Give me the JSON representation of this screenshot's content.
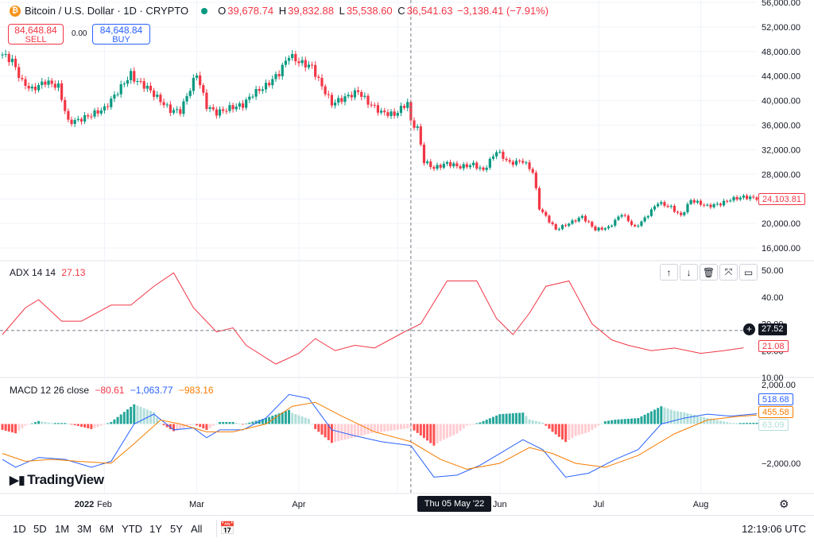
{
  "header": {
    "symbol": "Bitcoin / U.S. Dollar · 1D · CRYPTO",
    "coin_glyph": "₿",
    "ohlc": {
      "o_label": "O",
      "o": "39,678.74",
      "h_label": "H",
      "h": "39,832.88",
      "l_label": "L",
      "l": "35,538.60",
      "c_label": "C",
      "c": "36,541.63",
      "chg": "−3,138.41 (−7.91%)"
    }
  },
  "trade": {
    "sell_price": "84,648.84",
    "sell_label": "SELL",
    "spread": "0.00",
    "buy_price": "84,648.84",
    "buy_label": "BUY"
  },
  "price_pane": {
    "axis_ticks": [
      "56,000.00",
      "52,000.00",
      "48,000.00",
      "44,000.00",
      "40,000.00",
      "36,000.00",
      "32,000.00",
      "28,000.00",
      "24,000.00",
      "20,000.00",
      "16,000.00"
    ],
    "last_price": "24,103.81"
  },
  "adx_pane": {
    "legend": "ADX 14 14",
    "value": "27.13",
    "axis_ticks": [
      "50.00",
      "40.00",
      "30.00",
      "20.00",
      "10.00"
    ],
    "crosshair_value": "27.52",
    "last_value": "21.08"
  },
  "macd_pane": {
    "legend_name": "MACD 12 26 close",
    "hist": "−80.61",
    "macd": "−1,063.77",
    "signal": "−983.16",
    "axis_ticks": [
      "2,000.00",
      "−2,000.00"
    ],
    "tag_macd": "518.68",
    "tag_signal": "455.58",
    "tag_hist": "63.09"
  },
  "x_axis": {
    "labels": [
      "2022",
      "Feb",
      "Mar",
      "Apr",
      "May",
      "Jun",
      "Jul",
      "Aug"
    ],
    "crosshair_date": "Thu 05 May '22"
  },
  "bottom_bar": {
    "timeframes": [
      "1D",
      "5D",
      "1M",
      "3M",
      "6M",
      "YTD",
      "1Y",
      "5Y",
      "All"
    ],
    "clock": "12:19:06 UTC"
  },
  "logo": "TradingView",
  "colors": {
    "up": "#089981",
    "down": "#f23645",
    "adx": "#f23645",
    "macd": "#2962ff",
    "signal": "#f57c00",
    "grid": "#f0f3fa"
  },
  "chart_data": [
    {
      "type": "candlestick",
      "title": "Bitcoin / U.S. Dollar · 1D · CRYPTO",
      "x_start": "2022-01-01",
      "x_end": "2022-08-18",
      "ylim": [
        15000,
        56000
      ],
      "close_waypoints": [
        [
          "2022-01-01",
          47500
        ],
        [
          "2022-01-04",
          46500
        ],
        [
          "2022-01-07",
          43000
        ],
        [
          "2022-01-10",
          41800
        ],
        [
          "2022-01-14",
          43100
        ],
        [
          "2022-01-18",
          42300
        ],
        [
          "2022-01-21",
          36500
        ],
        [
          "2022-01-24",
          36800
        ],
        [
          "2022-01-28",
          37700
        ],
        [
          "2022-02-01",
          38700
        ],
        [
          "2022-02-05",
          41500
        ],
        [
          "2022-02-09",
          44300
        ],
        [
          "2022-02-10",
          43500
        ],
        [
          "2022-02-14",
          42100
        ],
        [
          "2022-02-17",
          40500
        ],
        [
          "2022-02-21",
          38400
        ],
        [
          "2022-02-24",
          38300
        ],
        [
          "2022-03-01",
          44400
        ],
        [
          "2022-03-04",
          39100
        ],
        [
          "2022-03-07",
          38000
        ],
        [
          "2022-03-11",
          38800
        ],
        [
          "2022-03-15",
          39300
        ],
        [
          "2022-03-18",
          41100
        ],
        [
          "2022-03-22",
          42400
        ],
        [
          "2022-03-26",
          44500
        ],
        [
          "2022-03-29",
          47400
        ],
        [
          "2022-04-01",
          46300
        ],
        [
          "2022-04-05",
          45500
        ],
        [
          "2022-04-07",
          43300
        ],
        [
          "2022-04-11",
          39500
        ],
        [
          "2022-04-15",
          40500
        ],
        [
          "2022-04-19",
          41500
        ],
        [
          "2022-04-22",
          39700
        ],
        [
          "2022-04-26",
          38100
        ],
        [
          "2022-04-30",
          37700
        ],
        [
          "2022-05-04",
          39700
        ],
        [
          "2022-05-05",
          36500
        ],
        [
          "2022-05-07",
          35500
        ],
        [
          "2022-05-09",
          30100
        ],
        [
          "2022-05-12",
          29000
        ],
        [
          "2022-05-16",
          29800
        ],
        [
          "2022-05-20",
          29200
        ],
        [
          "2022-05-24",
          29600
        ],
        [
          "2022-05-27",
          28600
        ],
        [
          "2022-05-31",
          31800
        ],
        [
          "2022-06-04",
          29800
        ],
        [
          "2022-06-08",
          30200
        ],
        [
          "2022-06-11",
          28400
        ],
        [
          "2022-06-13",
          22500
        ],
        [
          "2022-06-18",
          19000
        ],
        [
          "2022-06-22",
          20000
        ],
        [
          "2022-06-26",
          21100
        ],
        [
          "2022-06-30",
          19000
        ],
        [
          "2022-07-04",
          19300
        ],
        [
          "2022-07-08",
          21600
        ],
        [
          "2022-07-12",
          19300
        ],
        [
          "2022-07-15",
          20800
        ],
        [
          "2022-07-19",
          23400
        ],
        [
          "2022-07-23",
          22600
        ],
        [
          "2022-07-26",
          21200
        ],
        [
          "2022-07-29",
          23800
        ],
        [
          "2022-08-03",
          22800
        ],
        [
          "2022-08-07",
          23200
        ],
        [
          "2022-08-10",
          23900
        ],
        [
          "2022-08-14",
          24300
        ],
        [
          "2022-08-18",
          24104
        ]
      ]
    },
    {
      "type": "line",
      "title": "ADX 14 14",
      "ylim": [
        10,
        52
      ],
      "series": [
        {
          "name": "ADX",
          "points": [
            [
              "2022-01-01",
              26
            ],
            [
              "2022-01-08",
              36
            ],
            [
              "2022-01-12",
              39
            ],
            [
              "2022-01-19",
              31
            ],
            [
              "2022-01-25",
              31
            ],
            [
              "2022-02-03",
              37
            ],
            [
              "2022-02-09",
              37
            ],
            [
              "2022-02-16",
              44
            ],
            [
              "2022-02-22",
              49
            ],
            [
              "2022-02-28",
              36
            ],
            [
              "2022-03-07",
              27
            ],
            [
              "2022-03-12",
              28.5
            ],
            [
              "2022-03-16",
              22
            ],
            [
              "2022-03-25",
              15
            ],
            [
              "2022-04-01",
              19
            ],
            [
              "2022-04-06",
              24.5
            ],
            [
              "2022-04-12",
              20
            ],
            [
              "2022-04-18",
              22
            ],
            [
              "2022-04-24",
              21
            ],
            [
              "2022-05-03",
              27
            ],
            [
              "2022-05-08",
              30
            ],
            [
              "2022-05-16",
              46
            ],
            [
              "2022-05-25",
              46
            ],
            [
              "2022-05-31",
              32
            ],
            [
              "2022-06-05",
              26
            ],
            [
              "2022-06-10",
              34
            ],
            [
              "2022-06-15",
              44
            ],
            [
              "2022-06-22",
              46
            ],
            [
              "2022-06-29",
              30
            ],
            [
              "2022-07-05",
              24
            ],
            [
              "2022-07-10",
              22
            ],
            [
              "2022-07-17",
              20
            ],
            [
              "2022-07-24",
              21
            ],
            [
              "2022-08-01",
              19
            ],
            [
              "2022-08-08",
              20
            ],
            [
              "2022-08-14",
              21.08
            ]
          ]
        }
      ]
    },
    {
      "type": "line",
      "title": "MACD 12 26 close",
      "ylim": [
        -3000,
        2000
      ],
      "series": [
        {
          "name": "MACD",
          "points": [
            [
              "2022-01-01",
              -1800
            ],
            [
              "2022-01-05",
              -2200
            ],
            [
              "2022-01-12",
              -1700
            ],
            [
              "2022-01-20",
              -1800
            ],
            [
              "2022-01-28",
              -2200
            ],
            [
              "2022-02-03",
              -1900
            ],
            [
              "2022-02-10",
              0
            ],
            [
              "2022-02-16",
              500
            ],
            [
              "2022-02-22",
              -300
            ],
            [
              "2022-02-28",
              -200
            ],
            [
              "2022-03-04",
              -700
            ],
            [
              "2022-03-08",
              -300
            ],
            [
              "2022-03-15",
              -300
            ],
            [
              "2022-03-22",
              300
            ],
            [
              "2022-03-29",
              1500
            ],
            [
              "2022-04-04",
              1300
            ],
            [
              "2022-04-11",
              -300
            ],
            [
              "2022-04-18",
              -600
            ],
            [
              "2022-04-26",
              -900
            ],
            [
              "2022-05-05",
              -1100
            ],
            [
              "2022-05-12",
              -2700
            ],
            [
              "2022-05-19",
              -2600
            ],
            [
              "2022-05-26",
              -2100
            ],
            [
              "2022-06-02",
              -1400
            ],
            [
              "2022-06-08",
              -800
            ],
            [
              "2022-06-14",
              -1300
            ],
            [
              "2022-06-21",
              -2700
            ],
            [
              "2022-06-28",
              -2500
            ],
            [
              "2022-07-06",
              -1800
            ],
            [
              "2022-07-13",
              -1300
            ],
            [
              "2022-07-20",
              0
            ],
            [
              "2022-07-27",
              300
            ],
            [
              "2022-08-03",
              500
            ],
            [
              "2022-08-10",
              400
            ],
            [
              "2022-08-18",
              518.68
            ]
          ]
        },
        {
          "name": "Signal",
          "points": [
            [
              "2022-01-01",
              -1500
            ],
            [
              "2022-01-08",
              -1900
            ],
            [
              "2022-01-16",
              -1800
            ],
            [
              "2022-01-24",
              -1900
            ],
            [
              "2022-02-03",
              -2000
            ],
            [
              "2022-02-10",
              -1000
            ],
            [
              "2022-02-18",
              200
            ],
            [
              "2022-02-24",
              0
            ],
            [
              "2022-03-04",
              -400
            ],
            [
              "2022-03-12",
              -400
            ],
            [
              "2022-03-22",
              0
            ],
            [
              "2022-03-30",
              900
            ],
            [
              "2022-04-06",
              1100
            ],
            [
              "2022-04-14",
              400
            ],
            [
              "2022-04-24",
              -400
            ],
            [
              "2022-05-05",
              -900
            ],
            [
              "2022-05-14",
              -1800
            ],
            [
              "2022-05-22",
              -2300
            ],
            [
              "2022-06-01",
              -2000
            ],
            [
              "2022-06-10",
              -1200
            ],
            [
              "2022-06-17",
              -1500
            ],
            [
              "2022-06-24",
              -2000
            ],
            [
              "2022-07-03",
              -2200
            ],
            [
              "2022-07-13",
              -1600
            ],
            [
              "2022-07-24",
              -500
            ],
            [
              "2022-08-03",
              200
            ],
            [
              "2022-08-12",
              380
            ],
            [
              "2022-08-18",
              455.58
            ]
          ]
        }
      ]
    }
  ]
}
